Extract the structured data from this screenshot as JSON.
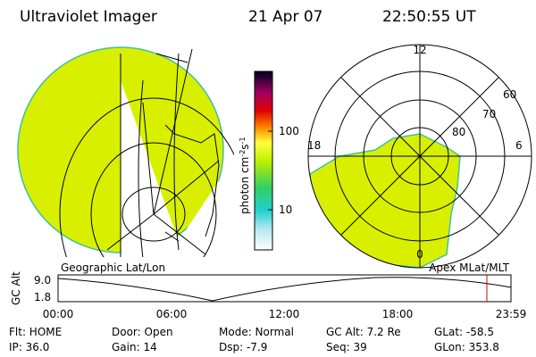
{
  "header": {
    "title": "Ultraviolet Imager",
    "date": "21 Apr 07",
    "time": "22:50:55 UT"
  },
  "colorbar": {
    "label": "photon cm",
    "sup1": "-2",
    "unit2": "s",
    "sup2": "-1",
    "ticks": [
      "100",
      "10"
    ]
  },
  "polar": {
    "mlt_labels": [
      "12",
      "18",
      "6",
      "0"
    ],
    "lat_labels": [
      "60",
      "70",
      "80"
    ]
  },
  "orbit": {
    "left_title": "Geographic Lat/Lon",
    "right_title": "Apex MLat/MLT",
    "axis_label": "GC Alt",
    "yticks": [
      "9.0",
      "1.8"
    ],
    "xticks": [
      "00:00",
      "06:00",
      "12:00",
      "18:00",
      "23:59"
    ]
  },
  "status": [
    [
      "Flt: HOME",
      "IP: 36.0"
    ],
    [
      "Door: Open",
      "Gain: 14"
    ],
    [
      "Mode: Normal",
      "Dsp:   -7.9"
    ],
    [
      "GC Alt: 7.2 Re",
      "Seq: 39"
    ],
    [
      "GLat: -58.5",
      "GLon: 353.8"
    ]
  ]
}
